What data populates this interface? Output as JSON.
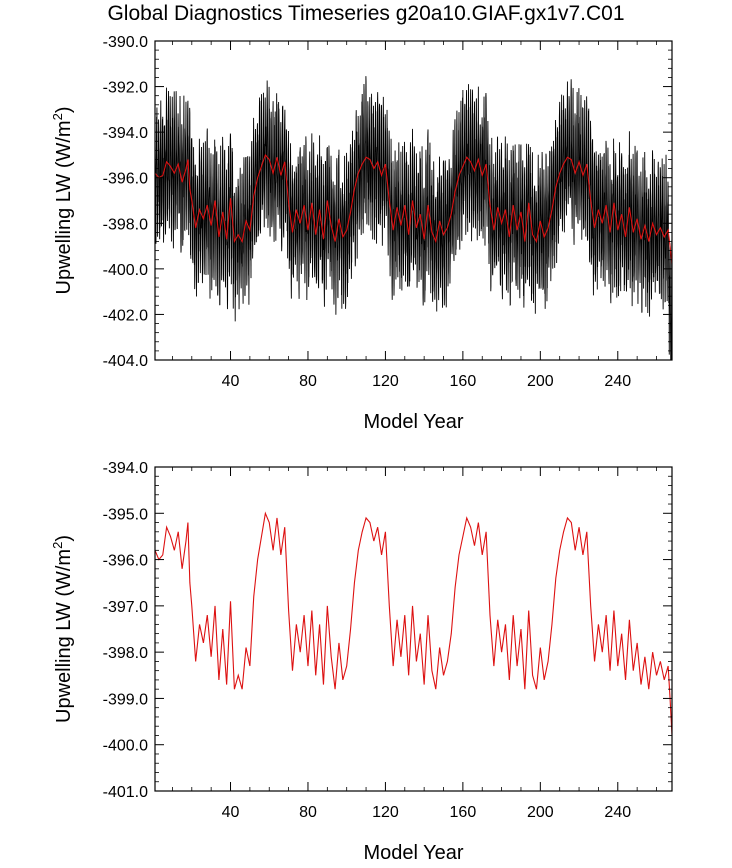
{
  "page_title": "Global Diagnostics Timeseries g20a10.GIAF.gx1v7.C01",
  "chart_data": [
    {
      "type": "line",
      "xlabel": "Model Year",
      "ylabel": "Upwelling LW (W/m",
      "ylabel_sup": "2",
      "ylabel_close": ")",
      "xlim": [
        1,
        268
      ],
      "ylim": [
        -404.0,
        -390.0
      ],
      "xticks": [
        40,
        80,
        120,
        160,
        200,
        240
      ],
      "yticks": [
        -404.0,
        -402.0,
        -400.0,
        -398.0,
        -396.0,
        -394.0,
        -392.0,
        -390.0
      ],
      "series": [
        {
          "color": "#000000",
          "kind": "monthly",
          "amplitude": 2.6,
          "noise": 1.0
        },
        {
          "color": "#dd1111",
          "kind": "annual"
        }
      ]
    },
    {
      "type": "line",
      "xlabel": "Model Year",
      "ylabel": "Upwelling LW (W/m",
      "ylabel_sup": "2",
      "ylabel_close": ")",
      "xlim": [
        1,
        268
      ],
      "ylim": [
        -401.0,
        -394.0
      ],
      "xticks": [
        40,
        80,
        120,
        160,
        200,
        240
      ],
      "yticks": [
        -401.0,
        -400.0,
        -399.0,
        -398.0,
        -397.0,
        -396.0,
        -395.0,
        -394.0
      ],
      "series": [
        {
          "color": "#dd1111",
          "kind": "annual"
        }
      ]
    }
  ],
  "annual_keyframes": [
    [
      1,
      -395.8
    ],
    [
      3,
      -396.0
    ],
    [
      5,
      -395.9
    ],
    [
      7,
      -395.3
    ],
    [
      9,
      -395.5
    ],
    [
      11,
      -395.8
    ],
    [
      13,
      -395.4
    ],
    [
      15,
      -396.2
    ],
    [
      17,
      -395.6
    ],
    [
      18,
      -395.2
    ],
    [
      19,
      -396.5
    ],
    [
      20,
      -397.0
    ],
    [
      22,
      -398.2
    ],
    [
      24,
      -397.4
    ],
    [
      26,
      -397.8
    ],
    [
      28,
      -397.2
    ],
    [
      30,
      -398.1
    ],
    [
      32,
      -397.0
    ],
    [
      34,
      -398.6
    ],
    [
      36,
      -397.5
    ],
    [
      38,
      -398.7
    ],
    [
      40,
      -396.9
    ],
    [
      42,
      -398.8
    ],
    [
      44,
      -398.5
    ],
    [
      46,
      -398.8
    ],
    [
      48,
      -397.9
    ],
    [
      50,
      -398.3
    ],
    [
      52,
      -396.8
    ],
    [
      54,
      -396.0
    ],
    [
      56,
      -395.5
    ],
    [
      58,
      -395.0
    ],
    [
      60,
      -395.2
    ],
    [
      62,
      -395.8
    ],
    [
      64,
      -395.1
    ],
    [
      66,
      -395.9
    ],
    [
      68,
      -395.3
    ],
    [
      70,
      -397.1
    ],
    [
      72,
      -398.4
    ],
    [
      74,
      -397.4
    ],
    [
      76,
      -398.0
    ],
    [
      78,
      -397.2
    ],
    [
      80,
      -398.3
    ],
    [
      82,
      -397.1
    ],
    [
      84,
      -398.5
    ],
    [
      86,
      -397.4
    ],
    [
      88,
      -398.7
    ],
    [
      90,
      -397.0
    ],
    [
      92,
      -398.1
    ],
    [
      94,
      -398.8
    ],
    [
      96,
      -397.8
    ],
    [
      98,
      -398.6
    ],
    [
      100,
      -398.3
    ],
    [
      102,
      -397.5
    ],
    [
      104,
      -396.5
    ],
    [
      106,
      -395.8
    ],
    [
      108,
      -395.4
    ],
    [
      110,
      -395.1
    ],
    [
      112,
      -395.2
    ],
    [
      114,
      -395.6
    ],
    [
      116,
      -395.3
    ],
    [
      118,
      -395.9
    ],
    [
      120,
      -395.4
    ],
    [
      122,
      -397.0
    ],
    [
      124,
      -398.3
    ],
    [
      126,
      -397.3
    ],
    [
      128,
      -398.1
    ],
    [
      130,
      -397.2
    ],
    [
      132,
      -398.5
    ],
    [
      134,
      -397.0
    ],
    [
      136,
      -398.2
    ],
    [
      138,
      -397.6
    ],
    [
      140,
      -398.7
    ],
    [
      142,
      -397.2
    ],
    [
      144,
      -398.4
    ],
    [
      146,
      -398.8
    ],
    [
      148,
      -397.9
    ],
    [
      150,
      -398.5
    ],
    [
      152,
      -398.2
    ],
    [
      154,
      -397.6
    ],
    [
      156,
      -396.6
    ],
    [
      158,
      -395.9
    ],
    [
      160,
      -395.5
    ],
    [
      162,
      -395.1
    ],
    [
      164,
      -395.3
    ],
    [
      166,
      -395.7
    ],
    [
      168,
      -395.2
    ],
    [
      170,
      -395.9
    ],
    [
      172,
      -395.4
    ],
    [
      174,
      -397.2
    ],
    [
      176,
      -398.3
    ],
    [
      178,
      -397.3
    ],
    [
      180,
      -398.0
    ],
    [
      182,
      -397.4
    ],
    [
      184,
      -398.6
    ],
    [
      186,
      -397.2
    ],
    [
      188,
      -398.3
    ],
    [
      190,
      -397.5
    ],
    [
      192,
      -398.8
    ],
    [
      194,
      -397.1
    ],
    [
      196,
      -398.5
    ],
    [
      198,
      -398.8
    ],
    [
      200,
      -397.9
    ],
    [
      202,
      -398.6
    ],
    [
      204,
      -398.2
    ],
    [
      206,
      -397.4
    ],
    [
      208,
      -396.4
    ],
    [
      210,
      -395.8
    ],
    [
      212,
      -395.4
    ],
    [
      214,
      -395.1
    ],
    [
      216,
      -395.2
    ],
    [
      218,
      -395.8
    ],
    [
      220,
      -395.3
    ],
    [
      222,
      -395.9
    ],
    [
      224,
      -395.4
    ],
    [
      226,
      -397.0
    ],
    [
      228,
      -398.2
    ],
    [
      230,
      -397.4
    ],
    [
      232,
      -398.0
    ],
    [
      234,
      -397.2
    ],
    [
      236,
      -398.4
    ],
    [
      238,
      -397.1
    ],
    [
      240,
      -398.3
    ],
    [
      242,
      -397.6
    ],
    [
      244,
      -398.6
    ],
    [
      246,
      -397.3
    ],
    [
      248,
      -398.4
    ],
    [
      250,
      -397.8
    ],
    [
      252,
      -398.7
    ],
    [
      254,
      -398.1
    ],
    [
      256,
      -398.8
    ],
    [
      258,
      -398.0
    ],
    [
      260,
      -398.5
    ],
    [
      262,
      -398.2
    ],
    [
      264,
      -398.6
    ],
    [
      266,
      -398.3
    ],
    [
      267,
      -399.0
    ],
    [
      268,
      -399.8
    ]
  ]
}
